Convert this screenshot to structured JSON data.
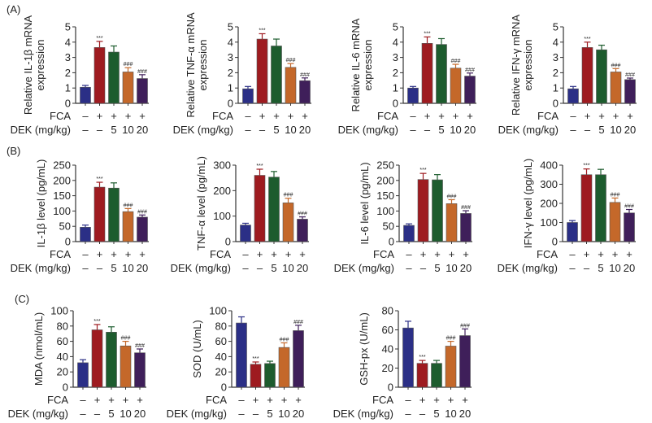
{
  "panel_labels": [
    "(A)",
    "(B)",
    "(C)"
  ],
  "group_colors": [
    "#2b2f86",
    "#9e1b20",
    "#1d5c2e",
    "#c4682a",
    "#3f1f5a"
  ],
  "row_labels": {
    "fca": "FCA",
    "dek": "DEK (mg/kg)"
  },
  "chart_data": [
    {
      "type": "bar",
      "panel": "A",
      "ylabel": [
        "Relative IL-1β mRNA",
        "expression"
      ],
      "ylim": [
        0,
        5
      ],
      "yticks": [
        "0",
        "1",
        "2",
        "3",
        "4",
        "5"
      ],
      "fca": [
        "–",
        "+",
        "+",
        "+",
        "+"
      ],
      "dek": [
        "–",
        "–",
        "5",
        "10",
        "20"
      ],
      "values": [
        1.05,
        3.65,
        3.35,
        2.05,
        1.62
      ],
      "errors": [
        0.12,
        0.4,
        0.4,
        0.28,
        0.25
      ],
      "annotations": [
        "",
        "***",
        "",
        "###",
        "###"
      ]
    },
    {
      "type": "bar",
      "panel": "A",
      "ylabel": [
        "Relative TNF-α mRNA",
        "expression"
      ],
      "ylim": [
        0,
        5
      ],
      "yticks": [
        "0",
        "1",
        "2",
        "3",
        "4",
        "5"
      ],
      "fca": [
        "–",
        "+",
        "+",
        "+",
        "+"
      ],
      "dek": [
        "–",
        "–",
        "5",
        "10",
        "20"
      ],
      "values": [
        0.95,
        4.2,
        3.75,
        2.35,
        1.48
      ],
      "errors": [
        0.15,
        0.35,
        0.45,
        0.25,
        0.18
      ],
      "annotations": [
        "",
        "***",
        "",
        "###",
        "###"
      ]
    },
    {
      "type": "bar",
      "panel": "A",
      "ylabel": [
        "Relative IL-6 mRNA",
        "expression"
      ],
      "ylim": [
        0,
        5
      ],
      "yticks": [
        "0",
        "1",
        "2",
        "3",
        "4",
        "5"
      ],
      "fca": [
        "–",
        "+",
        "+",
        "+",
        "+"
      ],
      "dek": [
        "–",
        "–",
        "5",
        "10",
        "20"
      ],
      "values": [
        1.0,
        3.92,
        3.85,
        2.3,
        1.78
      ],
      "errors": [
        0.1,
        0.42,
        0.38,
        0.25,
        0.2
      ],
      "annotations": [
        "",
        "***",
        "",
        "###",
        "###"
      ]
    },
    {
      "type": "bar",
      "panel": "A",
      "ylabel": [
        "Relative IFN-γ mRNA",
        "expression"
      ],
      "ylim": [
        0,
        5
      ],
      "yticks": [
        "0",
        "1",
        "2",
        "3",
        "4",
        "5"
      ],
      "fca": [
        "–",
        "+",
        "+",
        "+",
        "+"
      ],
      "dek": [
        "–",
        "–",
        "5",
        "10",
        "20"
      ],
      "values": [
        0.95,
        3.65,
        3.5,
        2.05,
        1.55
      ],
      "errors": [
        0.15,
        0.35,
        0.3,
        0.22,
        0.1
      ],
      "annotations": [
        "",
        "***",
        "",
        "###",
        "###"
      ]
    },
    {
      "type": "bar",
      "panel": "B",
      "ylabel": [
        "IL-1β level (pg/mL)"
      ],
      "ylim": [
        0,
        250
      ],
      "yticks": [
        "0",
        "50",
        "100",
        "150",
        "200",
        "250"
      ],
      "fca": [
        "–",
        "+",
        "+",
        "+",
        "+"
      ],
      "dek": [
        "–",
        "–",
        "5",
        "10",
        "20"
      ],
      "values": [
        47,
        178,
        175,
        98,
        80
      ],
      "errors": [
        7,
        16,
        17,
        10,
        7
      ],
      "annotations": [
        "",
        "***",
        "",
        "###",
        "###"
      ]
    },
    {
      "type": "bar",
      "panel": "B",
      "ylabel": [
        "TNF-α level (pg/mL)"
      ],
      "ylim": [
        0,
        300
      ],
      "yticks": [
        "0",
        "100",
        "200",
        "300"
      ],
      "fca": [
        "–",
        "+",
        "+",
        "+",
        "+"
      ],
      "dek": [
        "–",
        "–",
        "5",
        "10",
        "20"
      ],
      "values": [
        65,
        260,
        253,
        152,
        88
      ],
      "errors": [
        7,
        24,
        22,
        18,
        9
      ],
      "annotations": [
        "",
        "***",
        "",
        "###",
        "###"
      ]
    },
    {
      "type": "bar",
      "panel": "B",
      "ylabel": [
        "IL-6 level (pg/mL)"
      ],
      "ylim": [
        0,
        250
      ],
      "yticks": [
        "0",
        "50",
        "100",
        "150",
        "200",
        "250"
      ],
      "fca": [
        "–",
        "+",
        "+",
        "+",
        "+"
      ],
      "dek": [
        "–",
        "–",
        "5",
        "10",
        "20"
      ],
      "values": [
        53,
        203,
        202,
        124,
        92
      ],
      "errors": [
        5,
        20,
        17,
        13,
        9
      ],
      "annotations": [
        "",
        "***",
        "",
        "###",
        "###"
      ]
    },
    {
      "type": "bar",
      "panel": "B",
      "ylabel": [
        "IFN-γ level (pg/mL)"
      ],
      "ylim": [
        0,
        400
      ],
      "yticks": [
        "0",
        "100",
        "200",
        "300",
        "400"
      ],
      "fca": [
        "–",
        "+",
        "+",
        "+",
        "+"
      ],
      "dek": [
        "–",
        "–",
        "5",
        "10",
        "20"
      ],
      "values": [
        100,
        350,
        350,
        205,
        150
      ],
      "errors": [
        10,
        30,
        28,
        23,
        18
      ],
      "annotations": [
        "",
        "***",
        "",
        "###",
        "###"
      ]
    },
    {
      "type": "bar",
      "panel": "C",
      "ylabel": [
        "MDA (nmol/mL)"
      ],
      "ylim": [
        0,
        100
      ],
      "yticks": [
        "0",
        "20",
        "40",
        "60",
        "80",
        "100"
      ],
      "fca": [
        "–",
        "+",
        "+",
        "+",
        "+"
      ],
      "dek": [
        "–",
        "–",
        "5",
        "10",
        "20"
      ],
      "values": [
        32,
        75,
        72,
        54,
        45
      ],
      "errors": [
        4,
        7,
        7,
        6,
        5
      ],
      "annotations": [
        "",
        "***",
        "",
        "###",
        "###"
      ]
    },
    {
      "type": "bar",
      "panel": "C",
      "ylabel": [
        "SOD (U/mL)"
      ],
      "ylim": [
        0,
        100
      ],
      "yticks": [
        "0",
        "20",
        "40",
        "60",
        "80",
        "100"
      ],
      "fca": [
        "–",
        "+",
        "+",
        "+",
        "+"
      ],
      "dek": [
        "–",
        "–",
        "5",
        "10",
        "20"
      ],
      "values": [
        84,
        30,
        31,
        52,
        74
      ],
      "errors": [
        8,
        3,
        3,
        6,
        7
      ],
      "annotations": [
        "",
        "***",
        "",
        "###",
        "###"
      ]
    },
    {
      "type": "bar",
      "panel": "C",
      "ylabel": [
        "GSH-px (U/mL)"
      ],
      "ylim": [
        0,
        80
      ],
      "yticks": [
        "0",
        "20",
        "40",
        "60",
        "80"
      ],
      "fca": [
        "–",
        "+",
        "+",
        "+",
        "+"
      ],
      "dek": [
        "–",
        "–",
        "5",
        "10",
        "20"
      ],
      "values": [
        62,
        25,
        25,
        43,
        54
      ],
      "errors": [
        7,
        3,
        3,
        5,
        7
      ],
      "annotations": [
        "",
        "***",
        "",
        "###",
        "###"
      ]
    }
  ]
}
